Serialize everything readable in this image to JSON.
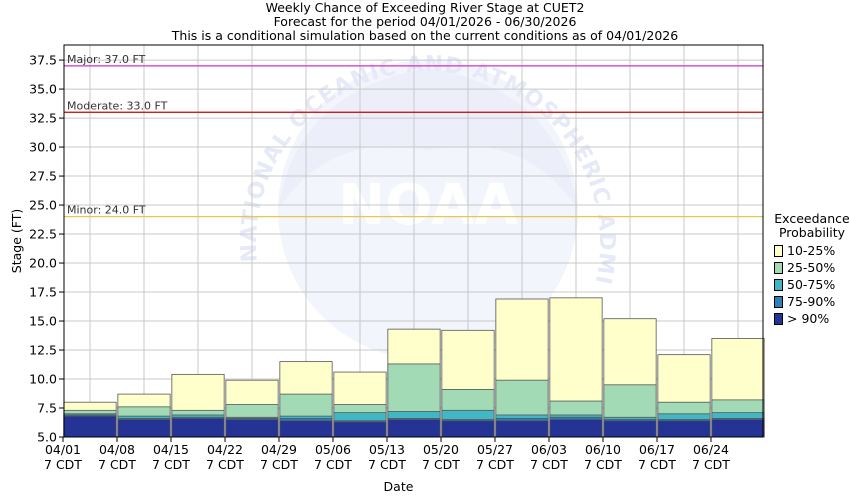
{
  "titles": {
    "line1": "Weekly Chance of Exceeding River Stage at CUET2",
    "line2": "Forecast for the period 04/01/2026 - 06/30/2026",
    "line3": "This is a conditional simulation based on the current conditions as of 04/01/2026"
  },
  "watermark": "NOAA",
  "watermark_ring_text": "NATIONAL OCEANIC AND ATMOSPHERIC ADMINISTRATION",
  "legend": {
    "title_line1": "Exceedance",
    "title_line2": "Probability",
    "items": [
      {
        "label": "10-25%",
        "color": "#ffffcc"
      },
      {
        "label": "25-50%",
        "color": "#a1dab4"
      },
      {
        "label": "50-75%",
        "color": "#41b6c4"
      },
      {
        "label": "75-90%",
        "color": "#2c7fb8"
      },
      {
        "label": "> 90%",
        "color": "#253494"
      }
    ]
  },
  "chart_data": {
    "type": "bar",
    "title": "Weekly Chance of Exceeding River Stage at CUET2",
    "xlabel": "Date",
    "ylabel": "Stage (FT)",
    "ylim": [
      5.0,
      38.8
    ],
    "yticks": [
      "5.0",
      "7.5",
      "10.0",
      "12.5",
      "15.0",
      "17.5",
      "20.0",
      "22.5",
      "25.0",
      "27.5",
      "30.0",
      "32.5",
      "35.0",
      "37.5"
    ],
    "grid": true,
    "legend_position": "right",
    "categories": [
      [
        "04/01",
        "7 CDT"
      ],
      [
        "04/08",
        "7 CDT"
      ],
      [
        "04/15",
        "7 CDT"
      ],
      [
        "04/22",
        "7 CDT"
      ],
      [
        "04/29",
        "7 CDT"
      ],
      [
        "05/06",
        "7 CDT"
      ],
      [
        "05/13",
        "7 CDT"
      ],
      [
        "05/20",
        "7 CDT"
      ],
      [
        "05/27",
        "7 CDT"
      ],
      [
        "06/03",
        "7 CDT"
      ],
      [
        "06/10",
        "7 CDT"
      ],
      [
        "06/17",
        "7 CDT"
      ],
      [
        "06/24",
        "7 CDT"
      ]
    ],
    "series": [
      {
        "name": "> 90%",
        "color": "#253494",
        "values": [
          6.8,
          6.5,
          6.6,
          6.5,
          6.4,
          6.3,
          6.5,
          6.4,
          6.4,
          6.5,
          6.4,
          6.4,
          6.5
        ]
      },
      {
        "name": "75-90%",
        "color": "#2c7fb8",
        "values": [
          6.9,
          6.6,
          6.7,
          6.6,
          6.6,
          6.4,
          6.6,
          6.5,
          6.6,
          6.7,
          6.5,
          6.5,
          6.6
        ]
      },
      {
        "name": "50-75%",
        "color": "#41b6c4",
        "values": [
          7.0,
          6.8,
          6.9,
          6.7,
          6.8,
          7.1,
          7.2,
          7.3,
          6.9,
          6.9,
          6.7,
          7.0,
          7.1
        ]
      },
      {
        "name": "25-50%",
        "color": "#a1dab4",
        "values": [
          7.3,
          7.6,
          7.3,
          7.8,
          8.7,
          7.8,
          11.3,
          9.1,
          9.9,
          8.1,
          9.5,
          8.0,
          8.2
        ]
      },
      {
        "name": "10-25%",
        "color": "#ffffcc",
        "values": [
          8.0,
          8.7,
          10.4,
          9.9,
          11.5,
          10.6,
          14.3,
          14.2,
          16.9,
          17.0,
          15.2,
          12.1,
          13.5
        ]
      }
    ],
    "thresholds": [
      {
        "label": "Major: 37.0 FT",
        "value": 37.0,
        "color": "#cc33cc"
      },
      {
        "label": "Moderate: 33.0 FT",
        "value": 33.0,
        "color": "#cc0000"
      },
      {
        "label": "Minor: 24.0 FT",
        "value": 24.0,
        "color": "#e6c84d"
      }
    ]
  }
}
